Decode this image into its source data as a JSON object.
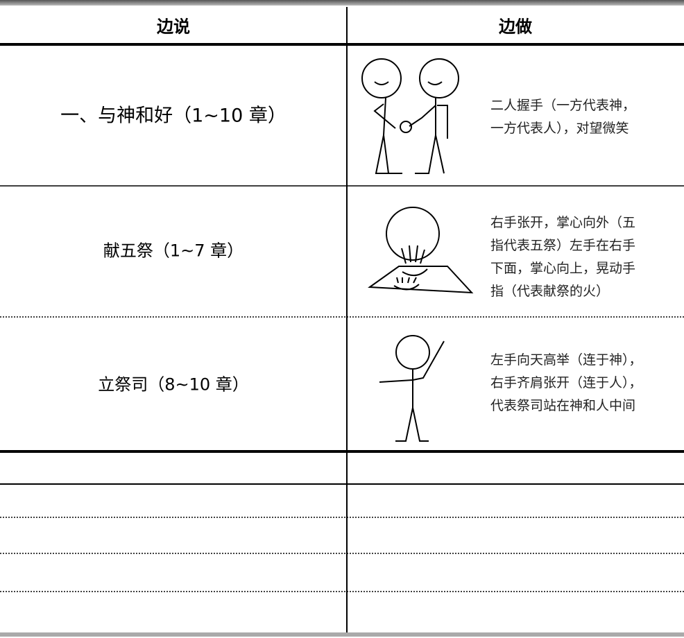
{
  "header": {
    "left": "边说",
    "right": "边做"
  },
  "rows": [
    {
      "say": "一、与神和好（1~10 章）",
      "do": [
        "二人握手（一方代表神，",
        "一方代表人），对望微笑"
      ]
    },
    {
      "say": "献五祭（1~7 章）",
      "do": [
        "右手张开，掌心向外（五",
        "指代表五祭）左手在右手",
        "下面，掌心向上，晃动手",
        "指（代表献祭的火）"
      ]
    },
    {
      "say": "立祭司（8~10 章）",
      "do": [
        "左手向天高举（连于神），",
        "右手齐肩张开（连于人），",
        "代表祭司站在神和人中间"
      ]
    }
  ]
}
